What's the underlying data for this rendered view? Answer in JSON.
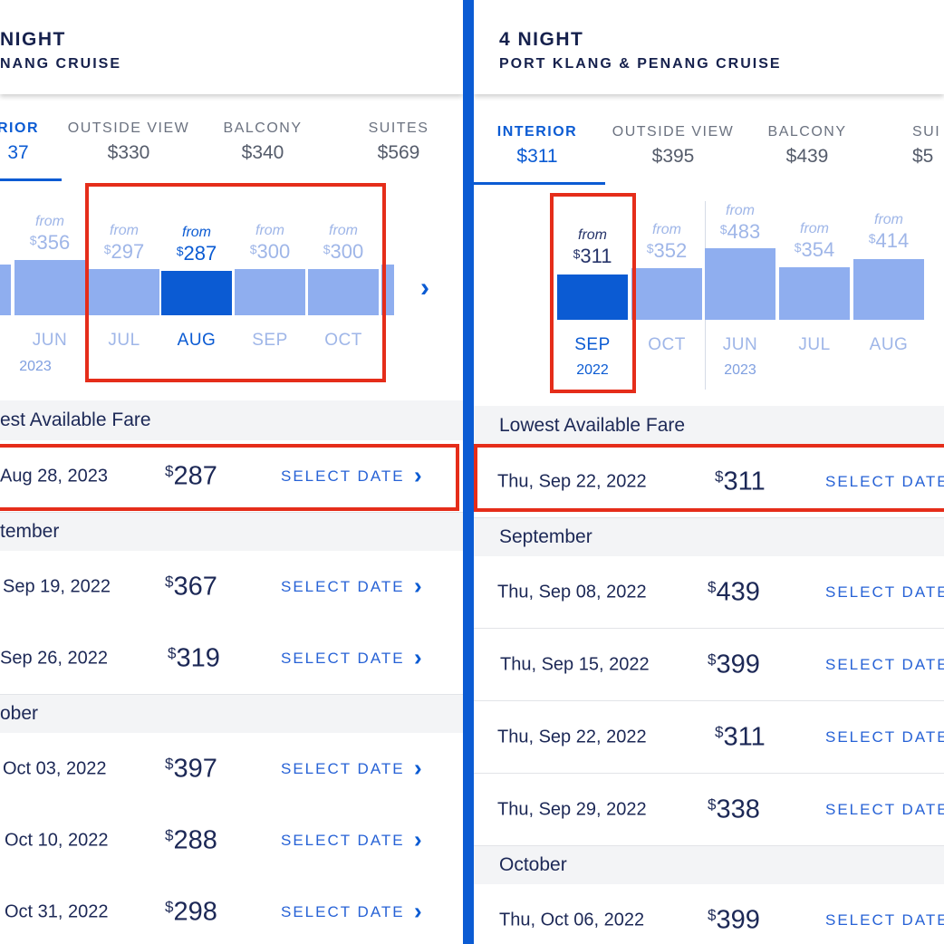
{
  "left": {
    "header": {
      "nights": "NIGHT",
      "route": "NANG CRUISE"
    },
    "tabs": [
      {
        "name": "RIOR",
        "price": "37",
        "active": true
      },
      {
        "name": "OUTSIDE VIEW",
        "price": "$330"
      },
      {
        "name": "BALCONY",
        "price": "$340"
      },
      {
        "name": "SUITES",
        "price": "$569"
      }
    ],
    "months": [
      {
        "from": "from",
        "price": "356",
        "month": "JUN",
        "year": "2023"
      },
      {
        "from": "from",
        "price": "297",
        "month": "JUL"
      },
      {
        "from": "from",
        "price": "287",
        "month": "AUG",
        "selected": true
      },
      {
        "from": "from",
        "price": "300",
        "month": "SEP"
      },
      {
        "from": "from",
        "price": "300",
        "month": "OCT"
      }
    ],
    "lowest_label": "est Available Fare",
    "lowest": {
      "date": "Aug 28, 2023",
      "price": "287",
      "action": "SELECT DATE"
    },
    "sections": [
      {
        "label": "tember",
        "rows": [
          {
            "date": "Sep 19, 2022",
            "price": "367",
            "action": "SELECT DATE"
          },
          {
            "date": "Sep 26, 2022",
            "price": "319",
            "action": "SELECT DATE"
          }
        ]
      },
      {
        "label": "ober",
        "rows": [
          {
            "date": "Oct 03, 2022",
            "price": "397",
            "action": "SELECT DATE"
          },
          {
            "date": "Oct 10, 2022",
            "price": "288",
            "action": "SELECT DATE"
          },
          {
            "date": "Oct 31, 2022",
            "price": "298",
            "action": "SELECT DATE"
          }
        ]
      }
    ]
  },
  "right": {
    "header": {
      "nights": "4 NIGHT",
      "route": "PORT KLANG & PENANG CRUISE"
    },
    "tabs": [
      {
        "name": "INTERIOR",
        "price": "$311",
        "active": true
      },
      {
        "name": "OUTSIDE VIEW",
        "price": "$395"
      },
      {
        "name": "BALCONY",
        "price": "$439"
      },
      {
        "name": "SUI",
        "price": "$5"
      }
    ],
    "months": [
      {
        "from": "from",
        "price": "311",
        "month": "SEP",
        "year": "2022",
        "selected": true
      },
      {
        "from": "from",
        "price": "352",
        "month": "OCT"
      },
      {
        "from": "from",
        "price": "483",
        "month": "JUN",
        "year": "2023"
      },
      {
        "from": "from",
        "price": "354",
        "month": "JUL"
      },
      {
        "from": "from",
        "price": "414",
        "month": "AUG"
      }
    ],
    "lowest_label": "Lowest Available Fare",
    "lowest": {
      "date": "Thu, Sep 22, 2022",
      "price": "311",
      "action": "SELECT DATE"
    },
    "sections": [
      {
        "label": "September",
        "rows": [
          {
            "date": "Thu, Sep 08, 2022",
            "price": "439",
            "action": "SELECT DATE"
          },
          {
            "date": "Thu, Sep 15, 2022",
            "price": "399",
            "action": "SELECT DATE"
          },
          {
            "date": "Thu, Sep 22, 2022",
            "price": "311",
            "action": "SELECT DATE"
          },
          {
            "date": "Thu, Sep 29, 2022",
            "price": "338",
            "action": "SELECT DATE"
          }
        ]
      },
      {
        "label": "October",
        "rows": [
          {
            "date": "Thu, Oct 06, 2022",
            "price": "399",
            "action": "SELECT DATE"
          }
        ]
      }
    ]
  },
  "currency_symbol": "$",
  "chevron": "›",
  "colors": {
    "accent": "#0b5bd3",
    "bar": "#8faeef",
    "highlight_box": "#e52d1a",
    "section_bg": "#f3f4f6"
  }
}
